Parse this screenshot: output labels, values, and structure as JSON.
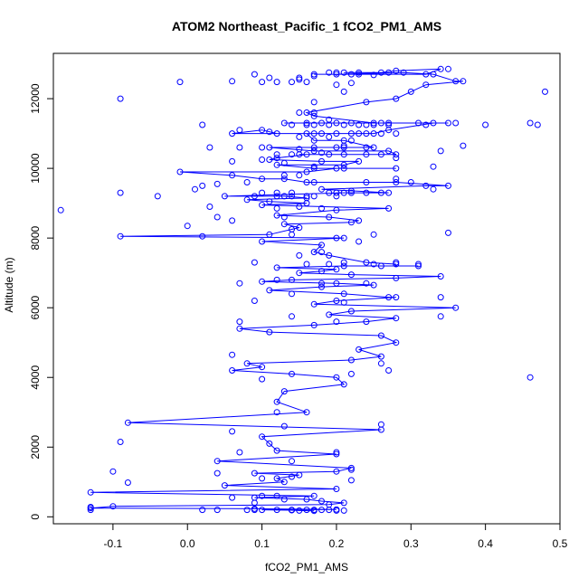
{
  "chart_data": {
    "type": "scatter",
    "title": "ATOM2 Northeast_Pacific_1 fCO2_PM1_AMS",
    "xlabel": "fCO2_PM1_AMS",
    "ylabel": "Altitude (m)",
    "xlim": [
      -0.18,
      0.5
    ],
    "ylim": [
      -200,
      13300
    ],
    "xticks": [
      "-0.1",
      "0.0",
      "0.1",
      "0.2",
      "0.3",
      "0.4",
      "0.5"
    ],
    "yticks": [
      "0",
      "2000",
      "4000",
      "6000",
      "8000",
      "10000",
      "12000"
    ],
    "grid": false,
    "legend": "none",
    "color": "#0000ff",
    "series": [
      {
        "x": [
          0.21,
          0.26,
          0.28,
          0.34,
          0.32,
          0.23,
          0.22,
          0.17,
          0.2,
          0.29,
          0.33,
          0.36,
          0.37,
          0.32,
          0.3,
          0.28,
          0.24,
          0.16,
          0.17,
          0.25,
          0.27,
          0.22,
          0.16,
          0.13,
          0.18,
          0.2,
          0.26,
          0.31,
          0.35,
          0.33,
          0.27,
          0.25,
          0.23,
          0.2,
          0.22,
          0.12,
          0.1,
          0.06,
          0.16,
          0.17,
          0.21,
          0.25,
          0.21,
          0.11,
          0.17,
          0.27,
          0.28,
          0.19,
          0.15,
          0.16,
          0.12,
          0.11,
          0.18,
          0.23,
          0.21,
          0.12,
          0.17,
          0.28,
          0.2,
          0.16,
          -0.01,
          0.06,
          0.1,
          0.13,
          0.16,
          0.17,
          0.28,
          0.35,
          0.32,
          0.18,
          0.27,
          0.2,
          0.21,
          0.05,
          0.09,
          0.13,
          0.16,
          0.08,
          0.11,
          0.16,
          0.1,
          0.27,
          0.2,
          0.12,
          0.19,
          0.23,
          0.22,
          0.13,
          0.15,
          0.14,
          0.11,
          -0.09,
          0.21,
          0.1,
          0.18,
          0.17,
          0.19,
          0.24,
          0.28
        ],
        "y": [
          12750,
          12750,
          12800,
          12850,
          12700,
          12700,
          12700,
          12700,
          12700,
          12750,
          12700,
          12500,
          12500,
          12400,
          12200,
          12000,
          11900,
          11600,
          11500,
          11300,
          11300,
          11300,
          11300,
          11300,
          11300,
          11300,
          11300,
          11300,
          11300,
          11300,
          11100,
          11000,
          11000,
          11000,
          11000,
          11000,
          11100,
          11000,
          11000,
          10800,
          10800,
          10600,
          10600,
          10600,
          10500,
          10500,
          10400,
          10400,
          10400,
          10400,
          10300,
          10250,
          10200,
          10200,
          10100,
          10100,
          10000,
          10000,
          10000,
          9900,
          9900,
          9800,
          9700,
          9700,
          9600,
          9600,
          9600,
          9500,
          9500,
          9400,
          9300,
          9300,
          9300,
          9200,
          9200,
          9200,
          9150,
          9100,
          9050,
          9000,
          8950,
          8850,
          8800,
          8650,
          8600,
          8500,
          8450,
          8400,
          8300,
          8250,
          8100,
          8050,
          8000,
          7900,
          7800,
          7600,
          7500,
          7300,
          7250
        ]
      },
      {
        "x": [
          0.26,
          0.31,
          0.21,
          0.12,
          0.2,
          0.18,
          0.15,
          0.22,
          0.34,
          0.28,
          0.14,
          0.1,
          0.2,
          0.25,
          0.18,
          0.11,
          0.21,
          0.27,
          0.28,
          0.2,
          0.17,
          0.36,
          0.22,
          0.19,
          0.28,
          0.24,
          0.17,
          0.07,
          0.11,
          0.26,
          0.28,
          0.23,
          0.26,
          0.22,
          0.08,
          0.1,
          0.06,
          0.14,
          0.2,
          0.21,
          0.13,
          0.12,
          0.16,
          -0.08,
          0.26,
          0.1,
          0.11,
          0.12,
          0.2,
          0.04,
          0.22,
          0.2,
          0.09,
          0.15,
          0.12,
          0.13,
          0.05,
          0.2,
          -0.13,
          0.17,
          0.09,
          0.16,
          0.18,
          0.21,
          0.19,
          -0.1,
          -0.13,
          0.09,
          0.2,
          0.1,
          0.14,
          0.15,
          0.17
        ],
        "y": [
          7200,
          7200,
          7200,
          7150,
          7100,
          7050,
          7000,
          6950,
          6900,
          6850,
          6800,
          6750,
          6700,
          6650,
          6600,
          6500,
          6400,
          6300,
          6300,
          6200,
          6100,
          6000,
          5900,
          5800,
          5700,
          5600,
          5500,
          5400,
          5300,
          5200,
          5000,
          4800,
          4600,
          4500,
          4400,
          4300,
          4200,
          4100,
          4000,
          3800,
          3600,
          3300,
          3000,
          2700,
          2500,
          2300,
          2100,
          1900,
          1800,
          1600,
          1400,
          1300,
          1250,
          1200,
          1100,
          1000,
          900,
          800,
          700,
          600,
          550,
          500,
          450,
          400,
          350,
          300,
          250,
          230,
          210,
          200,
          190,
          180,
          170
        ]
      }
    ],
    "points": [
      [
        0.09,
        12700
      ],
      [
        0.11,
        12600
      ],
      [
        0.15,
        12550
      ],
      [
        0.06,
        12500
      ],
      [
        -0.01,
        12480
      ],
      [
        0.1,
        12480
      ],
      [
        0.12,
        12480
      ],
      [
        0.14,
        12480
      ],
      [
        0.16,
        12480
      ],
      [
        0.22,
        12450
      ],
      [
        0.2,
        12400
      ],
      [
        0.15,
        12600
      ],
      [
        0.17,
        12650
      ],
      [
        0.19,
        12750
      ],
      [
        0.2,
        12750
      ],
      [
        0.23,
        12750
      ],
      [
        0.27,
        12750
      ],
      [
        0.35,
        12850
      ],
      [
        0.32,
        12700
      ],
      [
        0.25,
        12680
      ],
      [
        0.21,
        12200
      ],
      [
        -0.09,
        12000
      ],
      [
        0.17,
        11900
      ],
      [
        0.48,
        12200
      ],
      [
        0.15,
        11600
      ],
      [
        0.17,
        11600
      ],
      [
        0.19,
        11400
      ],
      [
        0.02,
        11250
      ],
      [
        0.14,
        11250
      ],
      [
        0.16,
        11250
      ],
      [
        0.17,
        11250
      ],
      [
        0.19,
        11250
      ],
      [
        0.21,
        11250
      ],
      [
        0.23,
        11250
      ],
      [
        0.24,
        11250
      ],
      [
        0.25,
        11250
      ],
      [
        0.27,
        11250
      ],
      [
        0.32,
        11250
      ],
      [
        0.36,
        11300
      ],
      [
        0.4,
        11250
      ],
      [
        0.46,
        11300
      ],
      [
        0.47,
        11250
      ],
      [
        0.07,
        11100
      ],
      [
        0.11,
        11050
      ],
      [
        0.17,
        11000
      ],
      [
        0.18,
        11000
      ],
      [
        0.2,
        11000
      ],
      [
        0.23,
        11000
      ],
      [
        0.24,
        11000
      ],
      [
        0.26,
        11000
      ],
      [
        0.28,
        11000
      ],
      [
        0.15,
        10900
      ],
      [
        0.19,
        10900
      ],
      [
        0.22,
        10800
      ],
      [
        0.03,
        10600
      ],
      [
        0.07,
        10600
      ],
      [
        0.1,
        10600
      ],
      [
        0.15,
        10550
      ],
      [
        0.17,
        10600
      ],
      [
        0.2,
        10600
      ],
      [
        0.21,
        10650
      ],
      [
        0.24,
        10600
      ],
      [
        0.37,
        10650
      ],
      [
        0.34,
        10500
      ],
      [
        0.06,
        10200
      ],
      [
        0.1,
        10250
      ],
      [
        0.12,
        10400
      ],
      [
        0.14,
        10400
      ],
      [
        0.16,
        10400
      ],
      [
        0.18,
        10450
      ],
      [
        0.21,
        10400
      ],
      [
        0.24,
        10400
      ],
      [
        0.26,
        10400
      ],
      [
        0.28,
        10300
      ],
      [
        0.13,
        10150
      ],
      [
        0.17,
        10050
      ],
      [
        0.21,
        10000
      ],
      [
        0.33,
        10050
      ],
      [
        0.13,
        9800
      ],
      [
        0.15,
        9800
      ],
      [
        0.24,
        9600
      ],
      [
        0.3,
        9600
      ],
      [
        0.28,
        9700
      ],
      [
        0.02,
        9500
      ],
      [
        0.04,
        9550
      ],
      [
        0.08,
        9600
      ],
      [
        0.1,
        9300
      ],
      [
        0.12,
        9300
      ],
      [
        0.14,
        9300
      ],
      [
        0.16,
        9200
      ],
      [
        0.17,
        9200
      ],
      [
        0.19,
        9300
      ],
      [
        0.2,
        9300
      ],
      [
        0.22,
        9300
      ],
      [
        0.24,
        9300
      ],
      [
        0.26,
        9300
      ],
      [
        0.33,
        9400
      ],
      [
        -0.09,
        9300
      ],
      [
        -0.04,
        9200
      ],
      [
        0.01,
        9400
      ],
      [
        0.12,
        9200
      ],
      [
        0.14,
        9200
      ],
      [
        0.2,
        9200
      ],
      [
        0.22,
        9350
      ],
      [
        -0.17,
        8800
      ],
      [
        0.03,
        8900
      ],
      [
        0.12,
        8850
      ],
      [
        0.15,
        8900
      ],
      [
        0.18,
        8850
      ],
      [
        0.04,
        8600
      ],
      [
        0.06,
        8500
      ],
      [
        0.13,
        8600
      ],
      [
        0.0,
        8350
      ],
      [
        0.02,
        8050
      ],
      [
        0.14,
        8100
      ],
      [
        0.2,
        8000
      ],
      [
        0.23,
        7900
      ],
      [
        0.25,
        8100
      ],
      [
        0.35,
        8150
      ],
      [
        0.18,
        7600
      ],
      [
        0.15,
        7500
      ],
      [
        0.09,
        7300
      ],
      [
        0.21,
        7300
      ],
      [
        0.16,
        7250
      ],
      [
        0.19,
        7250
      ],
      [
        0.25,
        7250
      ],
      [
        0.28,
        7300
      ],
      [
        0.31,
        7250
      ],
      [
        0.07,
        6700
      ],
      [
        0.12,
        6800
      ],
      [
        0.14,
        6400
      ],
      [
        0.18,
        6700
      ],
      [
        0.24,
        6700
      ],
      [
        0.09,
        6200
      ],
      [
        0.21,
        6150
      ],
      [
        0.34,
        6300
      ],
      [
        0.14,
        5750
      ],
      [
        0.07,
        5600
      ],
      [
        0.2,
        5600
      ],
      [
        0.34,
        5750
      ],
      [
        0.28,
        5700
      ],
      [
        0.06,
        4650
      ],
      [
        0.26,
        4400
      ],
      [
        0.27,
        4200
      ],
      [
        0.46,
        4000
      ],
      [
        0.1,
        3950
      ],
      [
        0.22,
        4100
      ],
      [
        0.12,
        3000
      ],
      [
        0.13,
        2600
      ],
      [
        0.06,
        2450
      ],
      [
        0.26,
        2650
      ],
      [
        -0.09,
        2150
      ],
      [
        0.07,
        1850
      ],
      [
        0.2,
        1850
      ],
      [
        0.14,
        1600
      ],
      [
        -0.1,
        1300
      ],
      [
        0.04,
        1250
      ],
      [
        0.14,
        1150
      ],
      [
        0.22,
        1050
      ],
      [
        0.22,
        1350
      ],
      [
        0.1,
        1100
      ],
      [
        -0.08,
        980
      ],
      [
        0.06,
        550
      ],
      [
        0.1,
        600
      ],
      [
        0.12,
        600
      ],
      [
        0.13,
        500
      ],
      [
        0.09,
        400
      ],
      [
        -0.13,
        280
      ],
      [
        -0.13,
        200
      ],
      [
        0.02,
        200
      ],
      [
        0.04,
        200
      ],
      [
        0.08,
        200
      ],
      [
        0.09,
        200
      ],
      [
        0.1,
        200
      ],
      [
        0.12,
        200
      ],
      [
        0.14,
        200
      ],
      [
        0.16,
        200
      ],
      [
        0.17,
        200
      ],
      [
        0.18,
        200
      ],
      [
        0.19,
        200
      ],
      [
        0.2,
        180
      ],
      [
        0.21,
        180
      ]
    ]
  }
}
